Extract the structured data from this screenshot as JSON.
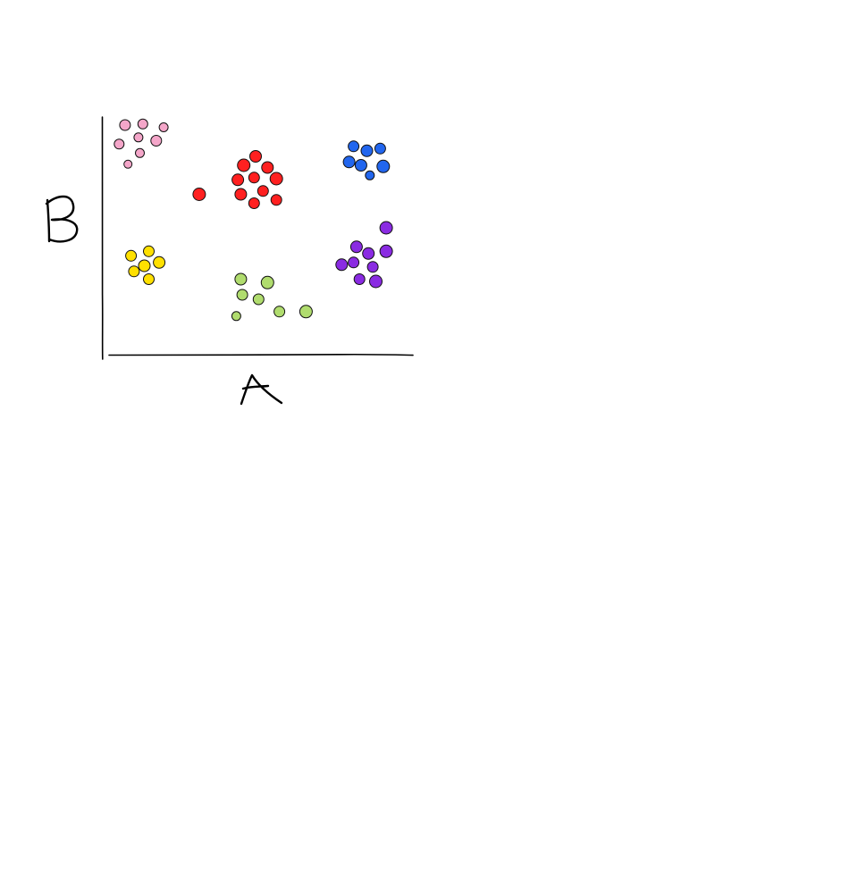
{
  "chart_data": {
    "type": "scatter",
    "title": "",
    "xlabel": "A",
    "ylabel": "B",
    "xlim": [
      0,
      100
    ],
    "ylim": [
      0,
      100
    ],
    "grid": false,
    "legend": "none",
    "series": [
      {
        "color": "#f4a6c9",
        "points": [
          {
            "x": 6,
            "y": 96,
            "r": 6
          },
          {
            "x": 12,
            "y": 96.5,
            "r": 5.5
          },
          {
            "x": 19,
            "y": 95,
            "r": 5
          },
          {
            "x": 10.5,
            "y": 90.5,
            "r": 5
          },
          {
            "x": 16.5,
            "y": 89,
            "r": 6
          },
          {
            "x": 4,
            "y": 87.5,
            "r": 5.5
          },
          {
            "x": 11,
            "y": 83.5,
            "r": 5
          },
          {
            "x": 7,
            "y": 78.5,
            "r": 4.5
          }
        ]
      },
      {
        "color": "#ff2020",
        "points": [
          {
            "x": 50,
            "y": 82,
            "r": 6.5
          },
          {
            "x": 46,
            "y": 78,
            "r": 7
          },
          {
            "x": 54,
            "y": 77,
            "r": 6.5
          },
          {
            "x": 44,
            "y": 71.5,
            "r": 6.5
          },
          {
            "x": 49.5,
            "y": 72.5,
            "r": 6
          },
          {
            "x": 57,
            "y": 72,
            "r": 7
          },
          {
            "x": 45,
            "y": 65,
            "r": 6.5
          },
          {
            "x": 52.5,
            "y": 66.5,
            "r": 6
          },
          {
            "x": 57,
            "y": 62.5,
            "r": 6
          },
          {
            "x": 49.5,
            "y": 61,
            "r": 6
          },
          {
            "x": 31,
            "y": 65,
            "r": 7
          }
        ]
      },
      {
        "color": "#2266ee",
        "points": [
          {
            "x": 83,
            "y": 86.5,
            "r": 6
          },
          {
            "x": 87.5,
            "y": 84.5,
            "r": 6.5
          },
          {
            "x": 92,
            "y": 85.5,
            "r": 6
          },
          {
            "x": 81.5,
            "y": 79.5,
            "r": 6.5
          },
          {
            "x": 85.5,
            "y": 78,
            "r": 6.5
          },
          {
            "x": 93,
            "y": 77.5,
            "r": 7
          },
          {
            "x": 88.5,
            "y": 73.5,
            "r": 5
          }
        ]
      },
      {
        "color": "#ffe000",
        "points": [
          {
            "x": 14,
            "y": 39.5,
            "r": 6
          },
          {
            "x": 8,
            "y": 37.5,
            "r": 6
          },
          {
            "x": 17.5,
            "y": 34.5,
            "r": 6.5
          },
          {
            "x": 12.5,
            "y": 33,
            "r": 6.5
          },
          {
            "x": 9,
            "y": 30.5,
            "r": 6
          },
          {
            "x": 14,
            "y": 27,
            "r": 6
          }
        ]
      },
      {
        "color": "#b0dc6e",
        "points": [
          {
            "x": 45,
            "y": 27,
            "r": 6.5
          },
          {
            "x": 54,
            "y": 25.5,
            "r": 7
          },
          {
            "x": 45.5,
            "y": 20,
            "r": 6
          },
          {
            "x": 51,
            "y": 18,
            "r": 6
          },
          {
            "x": 58,
            "y": 12.5,
            "r": 6
          },
          {
            "x": 67,
            "y": 12.5,
            "r": 7
          },
          {
            "x": 43.5,
            "y": 10.5,
            "r": 5
          }
        ]
      },
      {
        "color": "#8a2be2",
        "points": [
          {
            "x": 94,
            "y": 50,
            "r": 7
          },
          {
            "x": 84,
            "y": 41.5,
            "r": 6.5
          },
          {
            "x": 88,
            "y": 38.5,
            "r": 6.5
          },
          {
            "x": 94,
            "y": 39.5,
            "r": 7
          },
          {
            "x": 79,
            "y": 33.5,
            "r": 6.5
          },
          {
            "x": 83,
            "y": 34.5,
            "r": 6
          },
          {
            "x": 89.5,
            "y": 32.5,
            "r": 6
          },
          {
            "x": 85,
            "y": 27,
            "r": 6
          },
          {
            "x": 90.5,
            "y": 26,
            "r": 7
          }
        ]
      }
    ]
  }
}
